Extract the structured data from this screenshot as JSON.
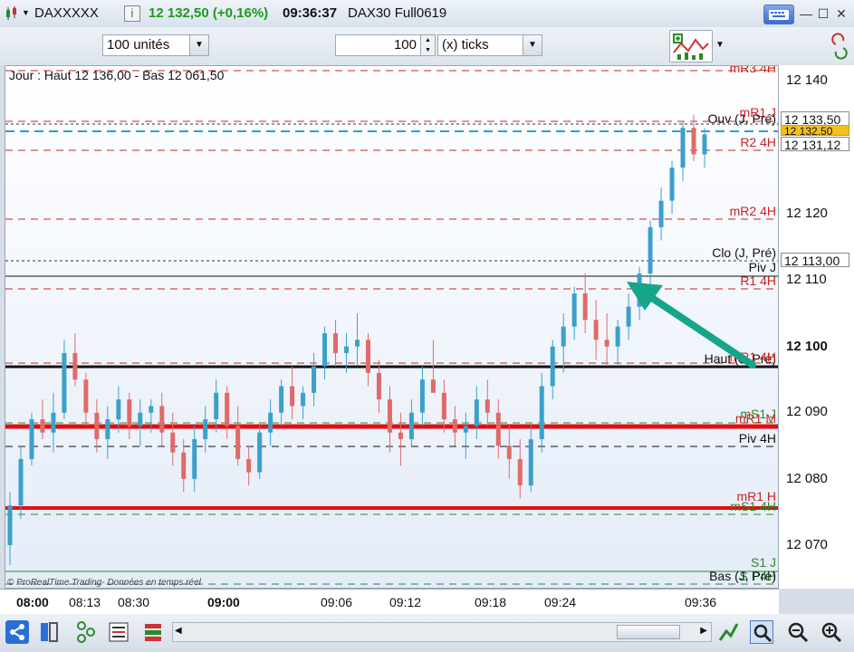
{
  "titlebar": {
    "instrument": "DAXXXXX",
    "info_icon": "i",
    "price_change": "12 132,50 (+0,16%)",
    "time": "09:36:37",
    "contract": "DAX30 Full0619",
    "colors": {
      "up": "#1a9c1a"
    }
  },
  "toolbar": {
    "units_value": "100 unités",
    "quantity_value": "100",
    "ticks_value": "(x) ticks"
  },
  "chart_header": "Jour : Haut 12 136,00 - Bas 12 061,50",
  "copyright": "© ProRealTime Trading- Données en temps réel",
  "levels": [
    {
      "label": "mR3 4H",
      "color": "#cc2222"
    },
    {
      "label": "mR1 J",
      "color": "#cc2222"
    },
    {
      "label": "Ouv (J, Pré)",
      "color": "#111111"
    },
    {
      "label": "R2 4H",
      "color": "#cc2222"
    },
    {
      "label": "mR2 4H",
      "color": "#cc2222"
    },
    {
      "label": "Clo (J, Pré)",
      "color": "#111111"
    },
    {
      "label": "Piv J",
      "color": "#111111"
    },
    {
      "label": "R1 4H",
      "color": "#cc2222"
    },
    {
      "label": "Haut (J, Pré)",
      "color": "#111111"
    },
    {
      "label": "mR1 4H",
      "color": "#cc2222"
    },
    {
      "label": "mS1 J",
      "color": "#2a8a2a"
    },
    {
      "label": "mR1 M",
      "color": "#cc2222"
    },
    {
      "label": "Piv 4H",
      "color": "#111111"
    },
    {
      "label": "mR1 H",
      "color": "#cc2222"
    },
    {
      "label": "mS1 4H",
      "color": "#2a8a2a"
    },
    {
      "label": "S1 J",
      "color": "#2a8a2a"
    },
    {
      "label": "S P4H",
      "color": "#2a8a2a"
    },
    {
      "label": "Bas (J, Pré)",
      "color": "#111111"
    }
  ],
  "yaxis": {
    "ticks": [
      "12 140",
      "12 120",
      "12 110",
      "12 100",
      "12 090",
      "12 080",
      "12 070"
    ],
    "tag_open": "12 133,50",
    "tag_last": "12 132,50",
    "tag_r2": "12 131,12",
    "tag_clo": "12 113,00"
  },
  "xaxis": {
    "ticks": [
      "08:00",
      "08:13",
      "08:30",
      "09:00",
      "09:06",
      "09:12",
      "09:18",
      "09:24",
      "09:36"
    ]
  },
  "candles": {
    "up_color": "#3aa0cc",
    "down_color": "#e06a6a",
    "ohlc": [
      [
        12070,
        12078,
        12067,
        12076
      ],
      [
        12076,
        12085,
        12074,
        12083
      ],
      [
        12083,
        12090,
        12082,
        12089
      ],
      [
        12089,
        12092,
        12086,
        12087
      ],
      [
        12087,
        12093,
        12084,
        12090
      ],
      [
        12090,
        12101,
        12089,
        12099
      ],
      [
        12099,
        12102,
        12094,
        12095
      ],
      [
        12095,
        12096,
        12088,
        12090
      ],
      [
        12090,
        12092,
        12084,
        12086
      ],
      [
        12086,
        12091,
        12083,
        12089
      ],
      [
        12089,
        12094,
        12087,
        12092
      ],
      [
        12092,
        12093,
        12086,
        12088
      ],
      [
        12088,
        12092,
        12085,
        12090
      ],
      [
        12090,
        12092,
        12087,
        12091
      ],
      [
        12091,
        12093,
        12085,
        12087
      ],
      [
        12087,
        12090,
        12082,
        12084
      ],
      [
        12084,
        12086,
        12078,
        12080
      ],
      [
        12080,
        12088,
        12078,
        12086
      ],
      [
        12086,
        12091,
        12084,
        12089
      ],
      [
        12089,
        12095,
        12087,
        12093
      ],
      [
        12093,
        12094,
        12086,
        12088
      ],
      [
        12088,
        12091,
        12082,
        12083
      ],
      [
        12083,
        12085,
        12079,
        12081
      ],
      [
        12081,
        12088,
        12080,
        12087
      ],
      [
        12087,
        12092,
        12085,
        12090
      ],
      [
        12090,
        12095,
        12088,
        12094
      ],
      [
        12094,
        12097,
        12089,
        12091
      ],
      [
        12091,
        12094,
        12089,
        12093
      ],
      [
        12093,
        12099,
        12091,
        12097
      ],
      [
        12097,
        12103,
        12095,
        12102
      ],
      [
        12102,
        12104,
        12097,
        12099
      ],
      [
        12099,
        12102,
        12096,
        12100
      ],
      [
        12100,
        12105,
        12097,
        12101
      ],
      [
        12101,
        12102,
        12094,
        12096
      ],
      [
        12096,
        12098,
        12090,
        12092
      ],
      [
        12092,
        12094,
        12084,
        12087
      ],
      [
        12087,
        12090,
        12082,
        12086
      ],
      [
        12086,
        12092,
        12085,
        12090
      ],
      [
        12090,
        12097,
        12088,
        12095
      ],
      [
        12095,
        12101,
        12093,
        12093
      ],
      [
        12093,
        12095,
        12087,
        12089
      ],
      [
        12089,
        12091,
        12085,
        12087
      ],
      [
        12087,
        12090,
        12083,
        12088
      ],
      [
        12088,
        12094,
        12086,
        12092
      ],
      [
        12092,
        12095,
        12088,
        12090
      ],
      [
        12090,
        12092,
        12083,
        12085
      ],
      [
        12085,
        12088,
        12080,
        12083
      ],
      [
        12083,
        12086,
        12077,
        12079
      ],
      [
        12079,
        12088,
        12078,
        12086
      ],
      [
        12086,
        12096,
        12084,
        12094
      ],
      [
        12094,
        12101,
        12092,
        12100
      ],
      [
        12100,
        12105,
        12096,
        12103
      ],
      [
        12103,
        12109,
        12101,
        12108
      ],
      [
        12108,
        12111,
        12102,
        12104
      ],
      [
        12104,
        12107,
        12098,
        12101
      ],
      [
        12101,
        12105,
        12097,
        12100
      ],
      [
        12100,
        12104,
        12097,
        12103
      ],
      [
        12103,
        12108,
        12101,
        12106
      ],
      [
        12106,
        12112,
        12104,
        12111
      ],
      [
        12111,
        12119,
        12109,
        12118
      ],
      [
        12118,
        12124,
        12116,
        12122
      ],
      [
        12122,
        12128,
        12120,
        12127
      ],
      [
        12127,
        12134,
        12125,
        12133
      ],
      [
        12133,
        12135,
        12128,
        12129
      ],
      [
        12129,
        12133,
        12127,
        12132
      ]
    ]
  }
}
